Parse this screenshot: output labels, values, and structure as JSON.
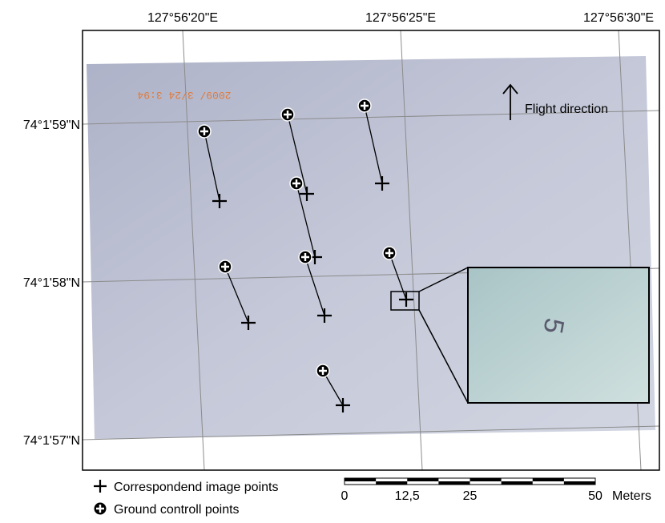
{
  "graticule": {
    "longitudes": [
      "127°56'20\"E",
      "127°56'25\"E",
      "127°56'30\"E"
    ],
    "latitudes": [
      "74°1'59\"N",
      "74°1'58\"N",
      "74°1'57\"N"
    ]
  },
  "annotation": "Flight direction",
  "stamp": "2009/ 3/24 3:94",
  "inset_label": "5",
  "legend": {
    "items": [
      "Correspondend image points",
      "Ground controll points"
    ]
  },
  "scale_bar": {
    "labels": [
      "0",
      "12,5",
      "25",
      "50"
    ],
    "unit": "Meters"
  }
}
